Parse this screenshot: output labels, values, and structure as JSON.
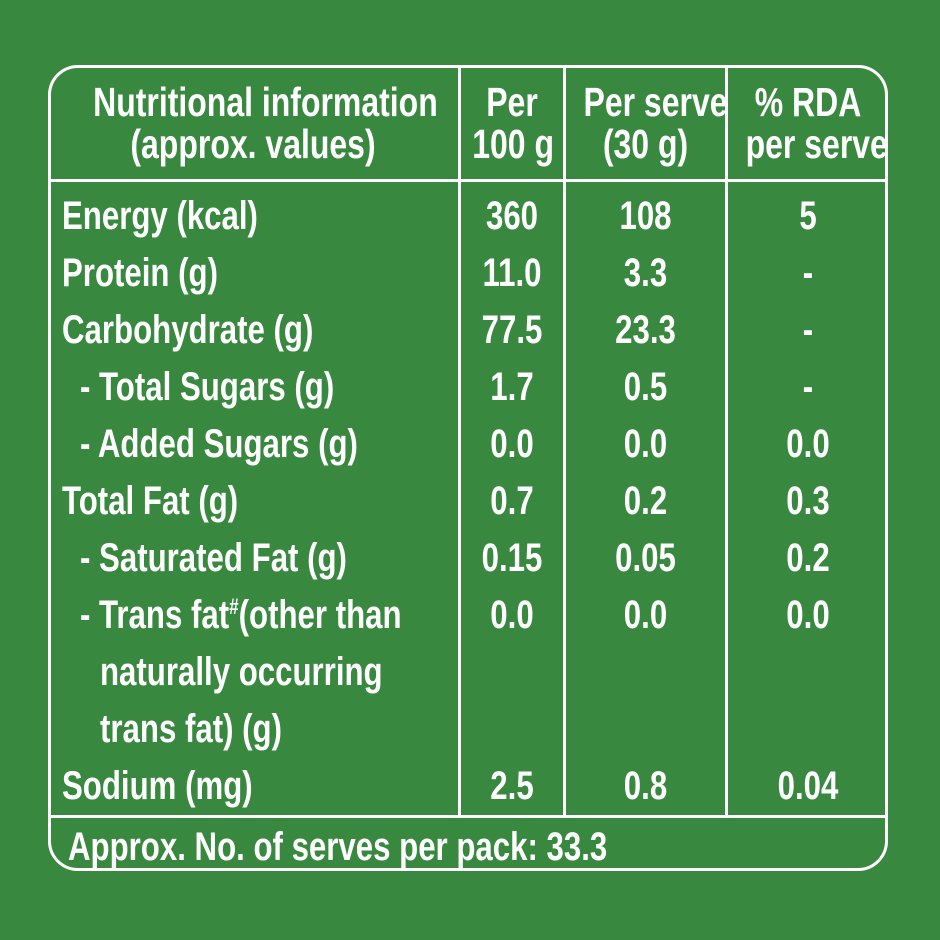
{
  "table": {
    "headers": {
      "nutrient": [
        "Nutritional information",
        "(approx. values)"
      ],
      "per100": [
        "Per",
        "100 g"
      ],
      "perServe": [
        "Per serve",
        "(30 g)"
      ],
      "rda": [
        "% RDA",
        "per serve"
      ]
    },
    "rows": [
      {
        "label": "Energy (kcal)",
        "per100": "360",
        "perServe": "108",
        "rda": "5"
      },
      {
        "label": "Protein (g)",
        "per100": "11.0",
        "perServe": "3.3",
        "rda": "-"
      },
      {
        "label": "Carbohydrate (g)",
        "per100": "77.5",
        "perServe": "23.3",
        "rda": "-"
      },
      {
        "label": "- Total Sugars (g)",
        "per100": "1.7",
        "perServe": "0.5",
        "rda": "-"
      },
      {
        "label": "- Added Sugars (g)",
        "per100": "0.0",
        "perServe": "0.0",
        "rda": "0.0"
      },
      {
        "label": "Total Fat (g)",
        "per100": "0.7",
        "perServe": "0.2",
        "rda": "0.3"
      },
      {
        "label": "- Saturated Fat (g)",
        "per100": "0.15",
        "perServe": "0.05",
        "rda": "0.2"
      },
      {
        "label_parts": [
          "- Trans fat",
          "#",
          "(other than"
        ],
        "label_line2": "naturally occurring",
        "label_line3": "trans fat) (g)",
        "per100": "0.0",
        "perServe": "0.0",
        "rda": "0.0"
      },
      {
        "label": "Sodium (mg)",
        "per100": "2.5",
        "perServe": "0.8",
        "rda": "0.04"
      }
    ],
    "footer": "Approx. No. of serves per pack: 33.3"
  },
  "colors": {
    "background": "#398840",
    "foreground": "#ffffff"
  }
}
